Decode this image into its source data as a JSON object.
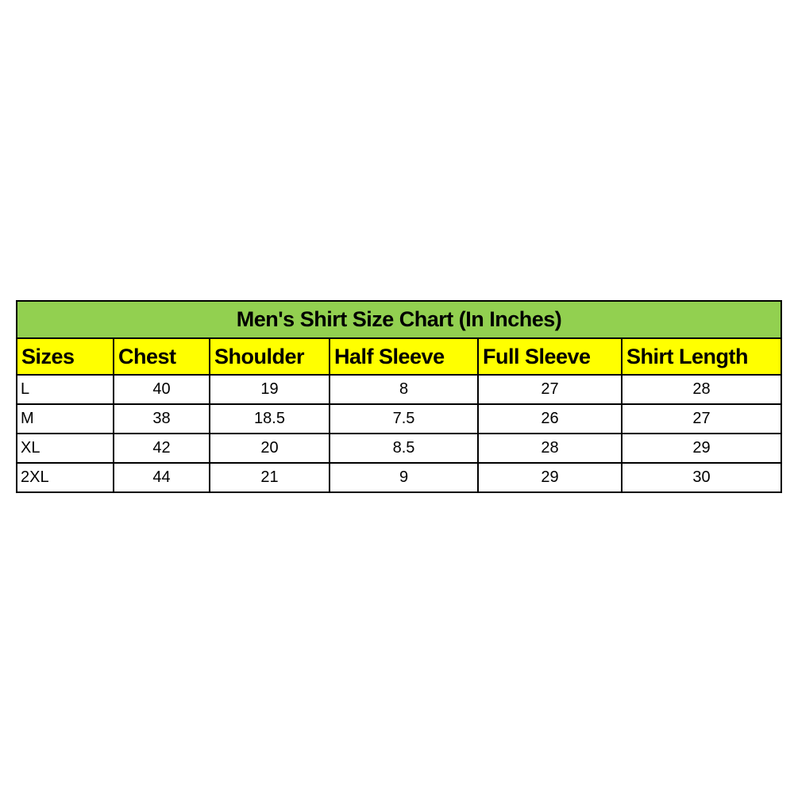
{
  "title": "Men's Shirt Size Chart (In Inches)",
  "colors": {
    "title_bg": "#92d050",
    "header_bg": "#ffff00",
    "border": "#000000"
  },
  "headers": [
    "Sizes",
    "Chest",
    "Shoulder",
    "Half Sleeve",
    "Full Sleeve",
    "Shirt Length"
  ],
  "rows": [
    [
      "L",
      "40",
      "19",
      "8",
      "27",
      "28"
    ],
    [
      "M",
      "38",
      "18.5",
      "7.5",
      "26",
      "27"
    ],
    [
      "XL",
      "42",
      "20",
      "8.5",
      "28",
      "29"
    ],
    [
      "2XL",
      "44",
      "21",
      "9",
      "29",
      "30"
    ]
  ]
}
